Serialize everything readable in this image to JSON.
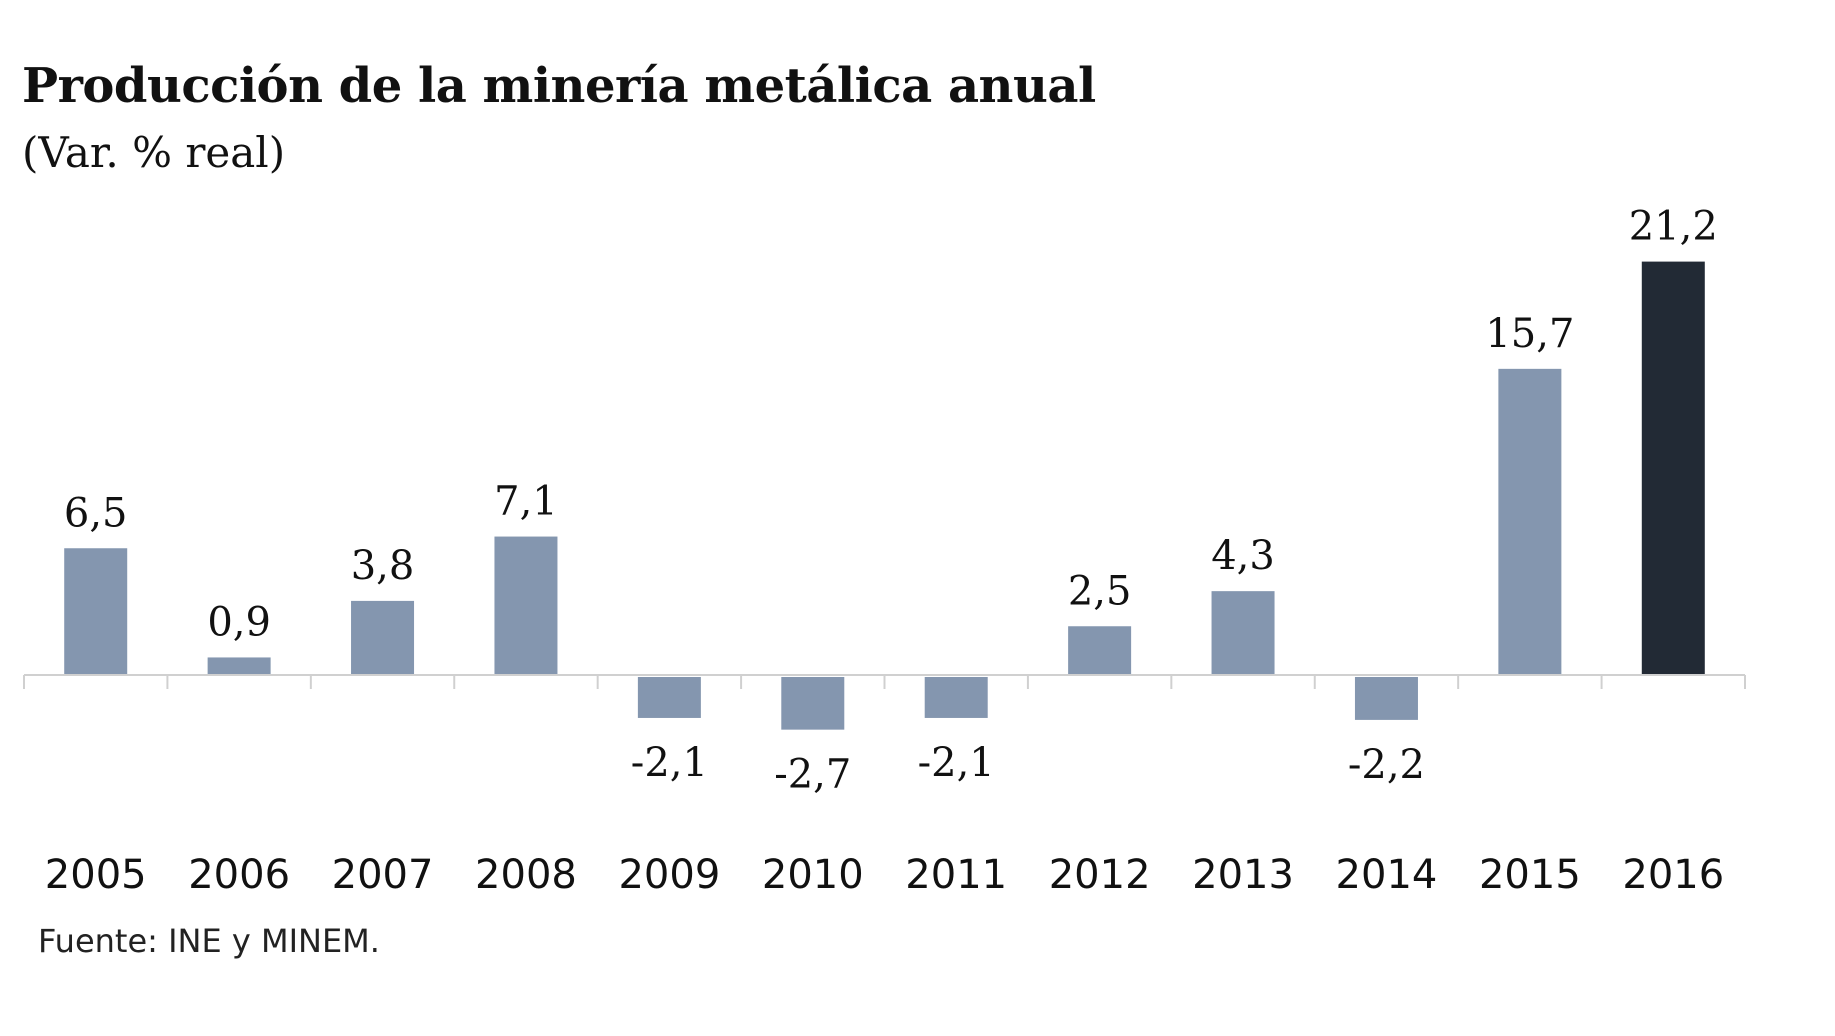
{
  "chart_data": {
    "type": "bar",
    "title": "Producción de la minería metálica anual",
    "subtitle": "(Var. % real)",
    "xlabel": "",
    "ylabel": "",
    "categories": [
      "2005",
      "2006",
      "2007",
      "2008",
      "2009",
      "2010",
      "2011",
      "2012",
      "2013",
      "2014",
      "2015",
      "2016"
    ],
    "values": [
      6.5,
      0.9,
      3.8,
      7.1,
      -2.1,
      -2.7,
      -2.1,
      2.5,
      4.3,
      -2.2,
      15.7,
      21.2
    ],
    "value_labels": [
      "6,5",
      "0,9",
      "3,8",
      "7,1",
      "-2,1",
      "-2,7",
      "-2,1",
      "2,5",
      "4,3",
      "-2,2",
      "15,7",
      "21,2"
    ],
    "ylim": [
      -3,
      22
    ],
    "grid": false,
    "legend": "none",
    "colors": {
      "default": "#8496AF",
      "highlight": "#222A35",
      "axis": "#D0D0D0"
    },
    "highlight_index": 11,
    "source": "Fuente: INE y MINEM."
  }
}
